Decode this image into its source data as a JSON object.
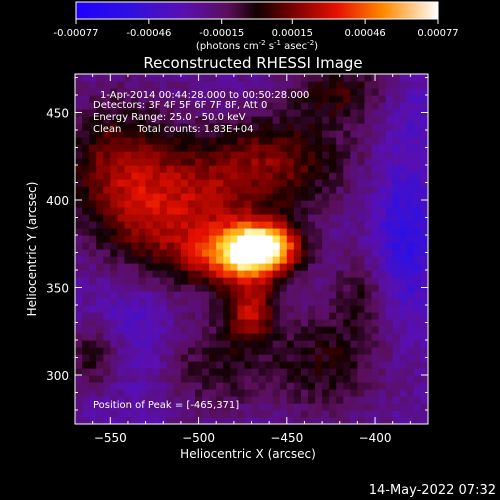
{
  "chart_data": {
    "type": "heatmap",
    "title": "Reconstructed RHESSI Image",
    "xlabel": "Heliocentric X (arcsec)",
    "ylabel": "Heliocentric Y (arcsec)",
    "xlim": [
      -570,
      -370
    ],
    "ylim": [
      272,
      472
    ],
    "x_ticks": [
      -550,
      -500,
      -450,
      -400
    ],
    "y_ticks": [
      300,
      350,
      400,
      450
    ],
    "colorbar": {
      "range": [
        -0.00077,
        0.00077
      ],
      "tick_values": [
        -0.00077,
        -0.00046,
        -0.00015,
        0.00015,
        0.00046,
        0.00077
      ],
      "tick_labels": [
        "-0.00077",
        "-0.00046",
        "-0.00015",
        "0.00015",
        "0.00046",
        "0.00077"
      ],
      "units_text": "(photons cm",
      "units_exp1": "-2",
      "units_mid": " s",
      "units_exp2": "-1",
      "units_tail": " asec",
      "units_exp3": "-2",
      "units_close": ")"
    },
    "annotations": {
      "time_range": "1-Apr-2014 00:44:28.000 to 00:50:28.000",
      "detectors": "Detectors: 3F 4F 5F 6F 7F 8F, Att 0",
      "energy": "Energy Range: 25.0 - 50.0 keV",
      "clean": "Clean     Total counts: 1.83E+04",
      "peak": "Position of Peak = [-465,371]"
    },
    "peak": [
      -465,
      371
    ],
    "blobs": [
      {
        "x": -465,
        "y": 371,
        "sx": 14,
        "sy": 10,
        "amp": 0.0009
      },
      {
        "x": -482,
        "y": 366,
        "sx": 18,
        "sy": 12,
        "amp": 0.00055
      },
      {
        "x": -472,
        "y": 335,
        "sx": 10,
        "sy": 12,
        "amp": 0.00045
      },
      {
        "x": -520,
        "y": 378,
        "sx": 26,
        "sy": 22,
        "amp": 0.00032
      },
      {
        "x": -495,
        "y": 405,
        "sx": 38,
        "sy": 20,
        "amp": 0.0003
      },
      {
        "x": -548,
        "y": 420,
        "sx": 22,
        "sy": 26,
        "amp": 0.00035
      },
      {
        "x": -455,
        "y": 425,
        "sx": 30,
        "sy": 18,
        "amp": 0.00028
      },
      {
        "x": -420,
        "y": 460,
        "sx": 20,
        "sy": 12,
        "amp": 0.00028
      },
      {
        "x": -495,
        "y": 305,
        "sx": 25,
        "sy": 20,
        "amp": 0.00022
      },
      {
        "x": -430,
        "y": 305,
        "sx": 22,
        "sy": 22,
        "amp": 0.00024
      },
      {
        "x": -410,
        "y": 345,
        "sx": 12,
        "sy": 18,
        "amp": 0.00018
      },
      {
        "x": -560,
        "y": 310,
        "sx": 12,
        "sy": 14,
        "amp": 0.0003
      },
      {
        "x": -385,
        "y": 378,
        "sx": 12,
        "sy": 30,
        "amp": -0.0003
      },
      {
        "x": -540,
        "y": 320,
        "sx": 20,
        "sy": 25,
        "amp": -0.00018
      },
      {
        "x": -380,
        "y": 450,
        "sx": 15,
        "sy": 15,
        "amp": -0.00012
      }
    ],
    "timestamp": "14-May-2022 07:32"
  }
}
